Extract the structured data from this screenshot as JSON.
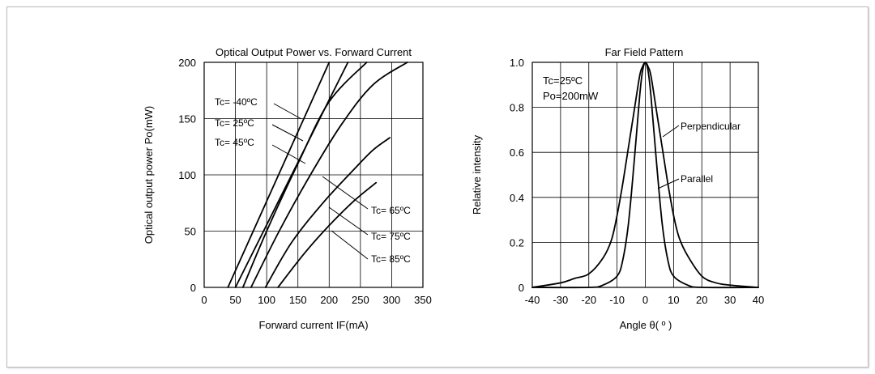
{
  "chart_data": [
    {
      "type": "line",
      "title": "Optical Output Power vs. Forward Current",
      "xlabel": "Forward current IF(mA)",
      "ylabel": "Optical output power Po(mW)",
      "xlim": [
        0,
        350
      ],
      "ylim": [
        0,
        200
      ],
      "xticks": [
        "0",
        "50",
        "100",
        "150",
        "200",
        "250",
        "300",
        "350"
      ],
      "yticks": [
        "0",
        "50",
        "100",
        "150",
        "200"
      ],
      "grid": true,
      "series": [
        {
          "name": "Tc= -40ºC",
          "x": [
            38,
            200
          ],
          "y": [
            0,
            200
          ]
        },
        {
          "name": "Tc= 25ºC",
          "x": [
            50,
            230
          ],
          "y": [
            0,
            200
          ]
        },
        {
          "name": "Tc= 45ºC",
          "x": [
            62,
            100,
            150,
            200,
            260
          ],
          "y": [
            0,
            50,
            110,
            165,
            200
          ]
        },
        {
          "name": "Tc= 65ºC",
          "x": [
            75,
            120,
            170,
            220,
            270,
            325
          ],
          "y": [
            0,
            50,
            100,
            145,
            180,
            200
          ]
        },
        {
          "name": "Tc= 75ºC",
          "x": [
            98,
            140,
            190,
            240,
            270,
            297
          ],
          "y": [
            0,
            40,
            75,
            105,
            122,
            133
          ]
        },
        {
          "name": "Tc= 85ºC",
          "x": [
            118,
            160,
            200,
            240,
            275
          ],
          "y": [
            0,
            30,
            55,
            77,
            93
          ]
        }
      ],
      "annotations": [
        "Tc= -40ºC",
        "Tc= 25ºC",
        "Tc= 45ºC",
        "Tc= 65ºC",
        "Tc= 75ºC",
        "Tc= 85ºC"
      ]
    },
    {
      "type": "line",
      "title": "Far Field Pattern",
      "xlabel": "Angle θ( º )",
      "ylabel": "Relative intensity",
      "xlim": [
        -40,
        40
      ],
      "ylim": [
        0,
        1.0
      ],
      "xticks": [
        "-40",
        "-30",
        "-20",
        "-10",
        "0",
        "10",
        "20",
        "30",
        "40"
      ],
      "yticks": [
        "0",
        "0.2",
        "0.4",
        "0.6",
        "0.8",
        "1.0"
      ],
      "grid": true,
      "conditions": [
        "Tc=25ºC",
        "Po=200mW"
      ],
      "series": [
        {
          "name": "Perpendicular",
          "x": [
            -40,
            -30,
            -25,
            -20,
            -15,
            -12,
            -10,
            -8,
            -6,
            -4,
            -2,
            -1,
            0,
            1,
            2,
            4,
            6,
            8,
            10,
            12,
            15,
            20,
            25,
            30,
            40
          ],
          "y": [
            0.0,
            0.02,
            0.04,
            0.06,
            0.13,
            0.21,
            0.32,
            0.46,
            0.62,
            0.78,
            0.94,
            0.98,
            1.0,
            0.98,
            0.94,
            0.78,
            0.62,
            0.46,
            0.32,
            0.22,
            0.14,
            0.05,
            0.02,
            0.01,
            0.0
          ]
        },
        {
          "name": "Parallel",
          "x": [
            -40,
            -20,
            -15,
            -10,
            -8,
            -6,
            -4,
            -2,
            -1,
            0,
            1,
            2,
            4,
            6,
            8,
            10,
            15,
            20,
            40
          ],
          "y": [
            0.0,
            0.0,
            0.01,
            0.05,
            0.12,
            0.28,
            0.55,
            0.85,
            0.96,
            1.0,
            0.96,
            0.85,
            0.55,
            0.28,
            0.12,
            0.05,
            0.01,
            0.0,
            0.0
          ]
        }
      ],
      "annotations": [
        "Perpendicular",
        "Parallel"
      ]
    }
  ]
}
